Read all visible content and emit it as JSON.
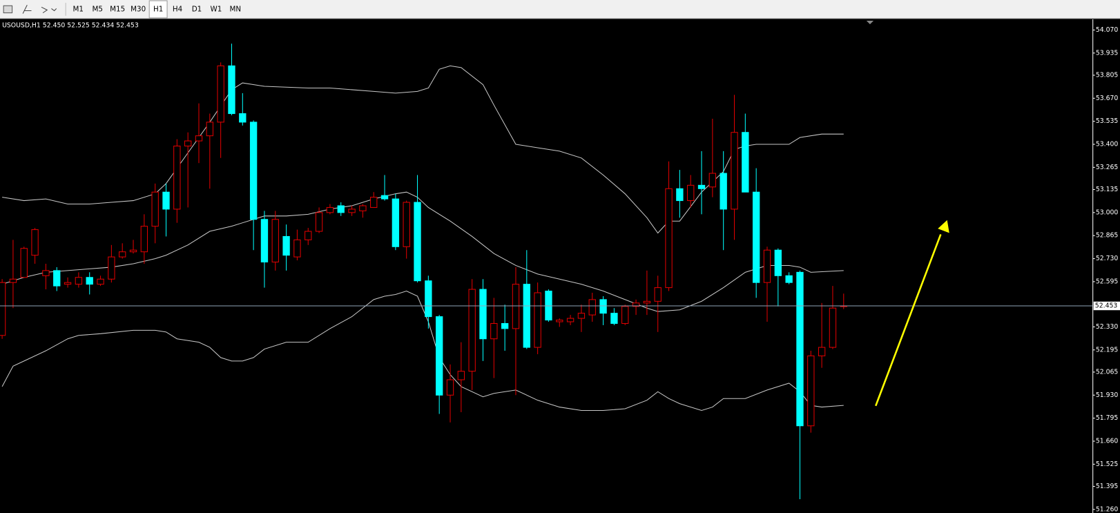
{
  "toolbar": {
    "timeframes": [
      "M1",
      "M5",
      "M15",
      "M30",
      "H1",
      "H4",
      "D1",
      "W1",
      "MN"
    ],
    "active": 4
  },
  "chart_data": {
    "type": "candlestick",
    "title": "USOUSD,H1  52.450 52.525 52.434 52.453",
    "open": [
      52.28,
      52.59,
      52.62,
      52.75,
      52.63,
      52.66,
      52.58,
      52.58,
      52.62,
      52.58,
      52.61,
      52.74,
      52.77,
      52.77,
      52.92,
      53.12,
      53.02,
      53.39,
      53.42,
      53.45,
      53.53,
      53.86,
      53.58,
      53.53,
      52.96,
      52.71,
      52.86,
      52.74,
      52.84,
      52.89,
      53.0,
      53.04,
      53.0,
      53.01,
      53.03,
      53.1,
      53.08,
      52.8,
      53.06,
      52.6,
      52.39,
      51.93,
      52.02,
      52.07,
      52.55,
      52.26,
      52.35,
      52.32,
      52.58,
      52.21,
      52.54,
      52.36,
      52.36,
      52.38,
      52.4,
      52.49,
      52.41,
      52.35,
      52.45,
      52.47,
      52.48,
      52.56,
      53.14,
      53.07,
      53.16,
      53.15,
      53.23,
      53.02,
      53.47,
      53.12,
      52.59,
      52.78,
      52.63,
      52.65,
      51.75,
      52.16,
      52.21,
      52.45
    ],
    "high": [
      52.61,
      52.84,
      52.8,
      52.91,
      52.7,
      52.68,
      52.62,
      52.65,
      52.65,
      52.63,
      52.81,
      52.82,
      52.84,
      52.99,
      53.17,
      53.17,
      53.43,
      53.47,
      53.64,
      53.58,
      53.88,
      53.99,
      53.7,
      53.54,
      53.01,
      53.01,
      52.93,
      52.9,
      52.91,
      53.03,
      53.05,
      53.06,
      53.04,
      53.05,
      53.12,
      53.22,
      53.11,
      53.07,
      53.22,
      52.63,
      52.4,
      52.11,
      52.24,
      52.61,
      52.61,
      52.5,
      52.46,
      52.68,
      52.78,
      52.59,
      52.55,
      52.38,
      52.4,
      52.46,
      52.53,
      52.51,
      52.44,
      52.46,
      52.49,
      52.66,
      52.63,
      53.3,
      53.25,
      53.22,
      53.36,
      53.55,
      53.36,
      53.69,
      53.58,
      53.26,
      52.8,
      52.79,
      52.65,
      52.66,
      52.19,
      52.47,
      52.57,
      52.525
    ],
    "low": [
      52.26,
      52.44,
      52.62,
      52.7,
      52.55,
      52.54,
      52.56,
      52.56,
      52.52,
      52.57,
      52.59,
      52.73,
      52.76,
      52.7,
      52.82,
      52.86,
      52.94,
      53.03,
      53.29,
      53.14,
      53.32,
      53.57,
      53.51,
      52.78,
      52.56,
      52.66,
      52.66,
      52.72,
      52.81,
      52.88,
      52.99,
      52.98,
      52.98,
      52.97,
      53.03,
      53.07,
      52.78,
      52.73,
      52.59,
      52.32,
      51.82,
      51.77,
      51.83,
      51.96,
      52.13,
      52.03,
      52.19,
      51.93,
      52.2,
      52.17,
      52.36,
      52.33,
      52.34,
      52.3,
      52.36,
      52.34,
      52.34,
      52.34,
      52.4,
      52.4,
      52.3,
      52.54,
      52.97,
      53.03,
      52.99,
      53.09,
      52.78,
      52.84,
      53.12,
      52.5,
      52.36,
      52.45,
      52.58,
      51.32,
      51.71,
      52.09,
      52.2,
      52.434
    ],
    "close": [
      52.59,
      52.61,
      52.79,
      52.9,
      52.66,
      52.57,
      52.59,
      52.62,
      52.58,
      52.61,
      52.74,
      52.77,
      52.78,
      52.92,
      53.12,
      53.02,
      53.39,
      53.42,
      53.45,
      53.53,
      53.86,
      53.58,
      53.53,
      52.96,
      52.71,
      52.96,
      52.75,
      52.84,
      52.89,
      53.0,
      53.03,
      53.0,
      53.02,
      53.04,
      53.09,
      53.08,
      52.8,
      53.06,
      52.6,
      52.39,
      51.93,
      52.02,
      52.07,
      52.55,
      52.26,
      52.35,
      52.32,
      52.58,
      52.21,
      52.53,
      52.37,
      52.37,
      52.38,
      52.41,
      52.49,
      52.41,
      52.35,
      52.45,
      52.47,
      52.48,
      52.56,
      53.14,
      53.07,
      53.16,
      53.14,
      53.23,
      53.02,
      53.47,
      53.12,
      52.59,
      52.78,
      52.63,
      52.59,
      51.75,
      52.16,
      52.21,
      52.44,
      52.453
    ],
    "up_color": "#e00000",
    "down_color": "#00ffff",
    "lines": [
      {
        "color": "#c8c8c8",
        "x": [
          0,
          2,
          4,
          6,
          8,
          10,
          12,
          14,
          15,
          17,
          19,
          21,
          22,
          24,
          28,
          30,
          32,
          34,
          36,
          38,
          39,
          40,
          41,
          42,
          44,
          45,
          47,
          49,
          51,
          53,
          55,
          57,
          59,
          60,
          61,
          62,
          64,
          65,
          66,
          67,
          68,
          69,
          70,
          72,
          73,
          75,
          77
        ],
        "values": [
          53.09,
          53.07,
          53.08,
          53.05,
          53.05,
          53.06,
          53.07,
          53.11,
          53.17,
          53.35,
          53.53,
          53.72,
          53.76,
          53.74,
          53.73,
          53.73,
          53.72,
          53.71,
          53.7,
          53.71,
          53.73,
          53.84,
          53.86,
          53.85,
          53.75,
          53.63,
          53.4,
          53.38,
          53.36,
          53.32,
          53.22,
          53.11,
          52.97,
          52.88,
          52.95,
          52.95,
          53.12,
          53.18,
          53.24,
          53.37,
          53.39,
          53.4,
          53.4,
          53.4,
          53.44,
          53.46,
          53.46
        ]
      },
      {
        "color": "#c8c8c8",
        "x": [
          0,
          2,
          4,
          6,
          8,
          10,
          12,
          14,
          15,
          17,
          19,
          21,
          22,
          23,
          24,
          26,
          28,
          30,
          32,
          34,
          36,
          37,
          38,
          39,
          41,
          43,
          45,
          47,
          49,
          51,
          53,
          55,
          57,
          59,
          60,
          62,
          64,
          66,
          68,
          70,
          72,
          73,
          74,
          77
        ],
        "values": [
          52.58,
          52.62,
          52.65,
          52.66,
          52.67,
          52.68,
          52.7,
          52.73,
          52.75,
          52.81,
          52.89,
          52.92,
          52.94,
          52.96,
          52.98,
          52.98,
          52.99,
          53.02,
          53.04,
          53.08,
          53.11,
          53.12,
          53.09,
          53.03,
          52.95,
          52.86,
          52.76,
          52.69,
          52.64,
          52.61,
          52.58,
          52.54,
          52.49,
          52.44,
          52.42,
          52.43,
          52.48,
          52.56,
          52.65,
          52.69,
          52.69,
          52.68,
          52.65,
          52.66
        ]
      },
      {
        "color": "#c8c8c8",
        "x": [
          0,
          1,
          2,
          4,
          6,
          7,
          9,
          12,
          14,
          15,
          16,
          18,
          19,
          20,
          21,
          22,
          23,
          24,
          26,
          28,
          30,
          32,
          34,
          35,
          36,
          37,
          38,
          39,
          40,
          41,
          42,
          44,
          45,
          47,
          49,
          51,
          53,
          55,
          57,
          59,
          60,
          61,
          62,
          64,
          65,
          66,
          68,
          70,
          72,
          73,
          74,
          75,
          77
        ],
        "values": [
          51.98,
          52.1,
          52.13,
          52.19,
          52.26,
          52.28,
          52.29,
          52.31,
          52.31,
          52.3,
          52.26,
          52.24,
          52.21,
          52.15,
          52.13,
          52.13,
          52.15,
          52.2,
          52.24,
          52.24,
          52.32,
          52.39,
          52.49,
          52.51,
          52.52,
          52.54,
          52.51,
          52.36,
          52.15,
          52.05,
          51.98,
          51.92,
          51.94,
          51.96,
          51.9,
          51.86,
          51.84,
          51.84,
          51.85,
          51.9,
          51.95,
          51.91,
          51.88,
          51.84,
          51.86,
          51.91,
          51.91,
          51.96,
          52.0,
          51.95,
          51.87,
          51.86,
          51.87
        ]
      }
    ],
    "last_price": 52.453,
    "last_price_color": "#8fa3b8",
    "ylim": [
      51.26,
      54.07
    ],
    "yticks": [
      {
        "value": 54.07,
        "label": "54.070"
      },
      53.935,
      53.805,
      {
        "value": 53.67,
        "label": "53.670"
      },
      53.535,
      {
        "value": 53.4,
        "label": "53.400"
      },
      53.265,
      53.135,
      {
        "value": 53.0,
        "label": "53.000"
      },
      52.865,
      {
        "value": 52.73,
        "label": "52.730"
      },
      52.595,
      {
        "value": 52.33,
        "label": "52.330"
      },
      52.195,
      52.065,
      {
        "value": 51.93,
        "label": "51.930"
      },
      51.795,
      {
        "value": 51.66,
        "label": "51.660"
      },
      51.525,
      51.395,
      {
        "value": 51.26,
        "label": "51.260"
      }
    ]
  }
}
